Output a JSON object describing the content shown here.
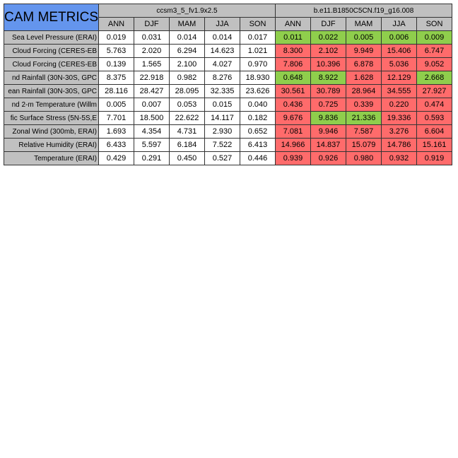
{
  "title": "CAM METRICS",
  "runs": [
    "ccsm3_5_fv1.9x2.5",
    "b.e11.B1850C5CN.f19_g16.008"
  ],
  "seasons": [
    "ANN",
    "DJF",
    "MAM",
    "JJA",
    "SON"
  ],
  "colors": {
    "title_bg": "#6495ed",
    "header_bg": "#c0c0c0",
    "better": "#8fce4c",
    "worse": "#ff6b6b",
    "neutral": "#ffffff"
  },
  "rows": [
    {
      "label": "Sea Level Pressure (ERAI)",
      "run1": [
        "0.019",
        "0.031",
        "0.014",
        "0.014",
        "0.017"
      ],
      "run2": [
        "0.011",
        "0.022",
        "0.005",
        "0.006",
        "0.009"
      ],
      "run2_status": [
        "better",
        "better",
        "better",
        "better",
        "better"
      ]
    },
    {
      "label": "Cloud Forcing (CERES-EB",
      "run1": [
        "5.763",
        "2.020",
        "6.294",
        "14.623",
        "1.021"
      ],
      "run2": [
        "8.300",
        "2.102",
        "9.949",
        "15.406",
        "6.747"
      ],
      "run2_status": [
        "worse",
        "worse",
        "worse",
        "worse",
        "worse"
      ]
    },
    {
      "label": "Cloud Forcing (CERES-EB",
      "run1": [
        "0.139",
        "1.565",
        "2.100",
        "4.027",
        "0.970"
      ],
      "run2": [
        "7.806",
        "10.396",
        "6.878",
        "5.036",
        "9.052"
      ],
      "run2_status": [
        "worse",
        "worse",
        "worse",
        "worse",
        "worse"
      ]
    },
    {
      "label": "nd Rainfall (30N-30S, GPC",
      "run1": [
        "8.375",
        "22.918",
        "0.982",
        "8.276",
        "18.930"
      ],
      "run2": [
        "0.648",
        "8.922",
        "1.628",
        "12.129",
        "2.668"
      ],
      "run2_status": [
        "better",
        "better",
        "worse",
        "worse",
        "better"
      ]
    },
    {
      "label": "ean Rainfall (30N-30S, GPC",
      "run1": [
        "28.116",
        "28.427",
        "28.095",
        "32.335",
        "23.626"
      ],
      "run2": [
        "30.561",
        "30.789",
        "28.964",
        "34.555",
        "27.927"
      ],
      "run2_status": [
        "worse",
        "worse",
        "worse",
        "worse",
        "worse"
      ]
    },
    {
      "label": "nd 2-m Temperature (Willm",
      "run1": [
        "0.005",
        "0.007",
        "0.053",
        "0.015",
        "0.040"
      ],
      "run2": [
        "0.436",
        "0.725",
        "0.339",
        "0.220",
        "0.474"
      ],
      "run2_status": [
        "worse",
        "worse",
        "worse",
        "worse",
        "worse"
      ]
    },
    {
      "label": "fic Surface Stress (5N-5S,E",
      "run1": [
        "7.701",
        "18.500",
        "22.622",
        "14.117",
        "0.182"
      ],
      "run2": [
        "9.676",
        "9.836",
        "21.336",
        "19.336",
        "0.593"
      ],
      "run2_status": [
        "worse",
        "better",
        "better",
        "worse",
        "worse"
      ]
    },
    {
      "label": "Zonal Wind (300mb, ERAI)",
      "run1": [
        "1.693",
        "4.354",
        "4.731",
        "2.930",
        "0.652"
      ],
      "run2": [
        "7.081",
        "9.946",
        "7.587",
        "3.276",
        "6.604"
      ],
      "run2_status": [
        "worse",
        "worse",
        "worse",
        "worse",
        "worse"
      ]
    },
    {
      "label": "Relative Humidity (ERAI)",
      "run1": [
        "6.433",
        "5.597",
        "6.184",
        "7.522",
        "6.413"
      ],
      "run2": [
        "14.966",
        "14.837",
        "15.079",
        "14.786",
        "15.161"
      ],
      "run2_status": [
        "worse",
        "worse",
        "worse",
        "worse",
        "worse"
      ]
    },
    {
      "label": "Temperature (ERAI)",
      "run1": [
        "0.429",
        "0.291",
        "0.450",
        "0.527",
        "0.446"
      ],
      "run2": [
        "0.939",
        "0.926",
        "0.980",
        "0.932",
        "0.919"
      ],
      "run2_status": [
        "worse",
        "worse",
        "worse",
        "worse",
        "worse"
      ]
    }
  ]
}
